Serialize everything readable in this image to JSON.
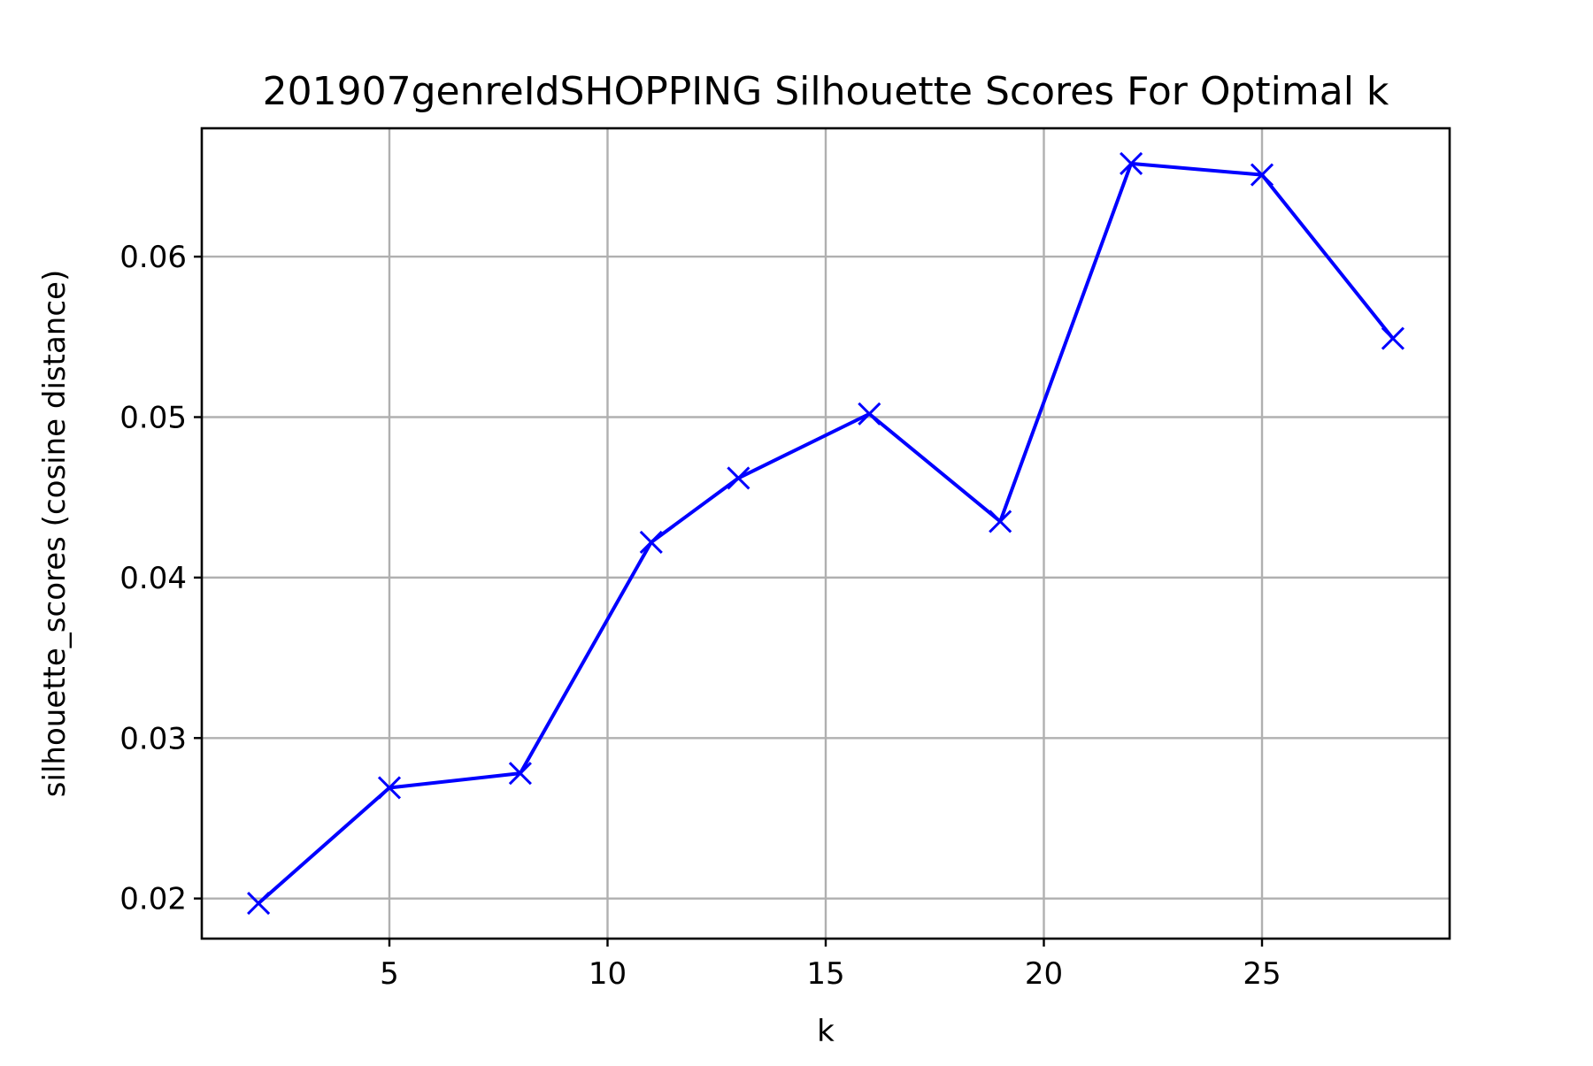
{
  "chart_data": {
    "type": "line",
    "title": "201907genreIdSHOPPING Silhouette Scores For Optimal k",
    "xlabel": "k",
    "ylabel": "silhouette_scores (cosine distance)",
    "xlim": [
      0.7,
      29.3
    ],
    "ylim": [
      0.0175,
      0.068
    ],
    "xticks": [
      5,
      10,
      15,
      20,
      25
    ],
    "yticks": [
      0.02,
      0.03,
      0.04,
      0.05,
      0.06
    ],
    "xtick_labels": [
      "5",
      "10",
      "15",
      "20",
      "25"
    ],
    "ytick_labels": [
      "0.02",
      "0.03",
      "0.04",
      "0.05",
      "0.06"
    ],
    "grid": true,
    "marker": "x",
    "color": "#0000ff",
    "series": [
      {
        "x": [
          2,
          5,
          8,
          11,
          13,
          16,
          19,
          22,
          25,
          28
        ],
        "values": [
          0.0197,
          0.0269,
          0.0278,
          0.0422,
          0.0462,
          0.0502,
          0.0435,
          0.0658,
          0.0651,
          0.0549
        ]
      }
    ]
  }
}
